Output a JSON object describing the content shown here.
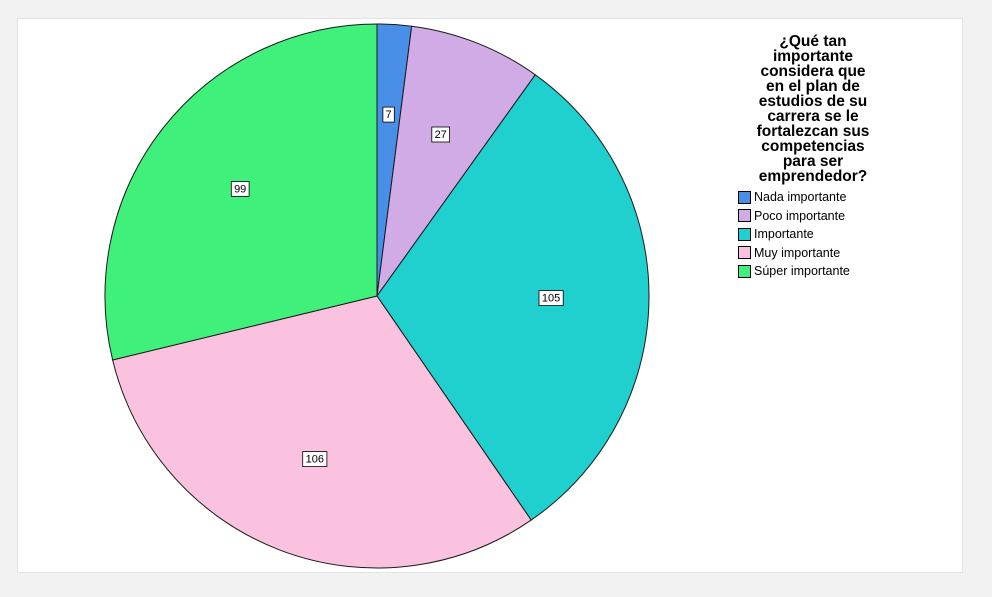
{
  "chart_data": {
    "type": "pie",
    "title": "¿Qué tan\nimportante\nconsidera que\nen el plan de\nestudios de su\ncarrera se le\nfortalezcan sus\ncompetencias\npara ser\nemprendedor?",
    "legend_position": "right",
    "slices": [
      {
        "label": "Nada importante",
        "value": 7,
        "color": "#4a8fe7"
      },
      {
        "label": "Poco importante",
        "value": 27,
        "color": "#d0abe6"
      },
      {
        "label": "Importante",
        "value": 105,
        "color": "#20d0cf"
      },
      {
        "label": "Muy importante",
        "value": 106,
        "color": "#fbc2df"
      },
      {
        "label": "Súper importante",
        "value": 99,
        "color": "#3ff07a"
      }
    ]
  }
}
